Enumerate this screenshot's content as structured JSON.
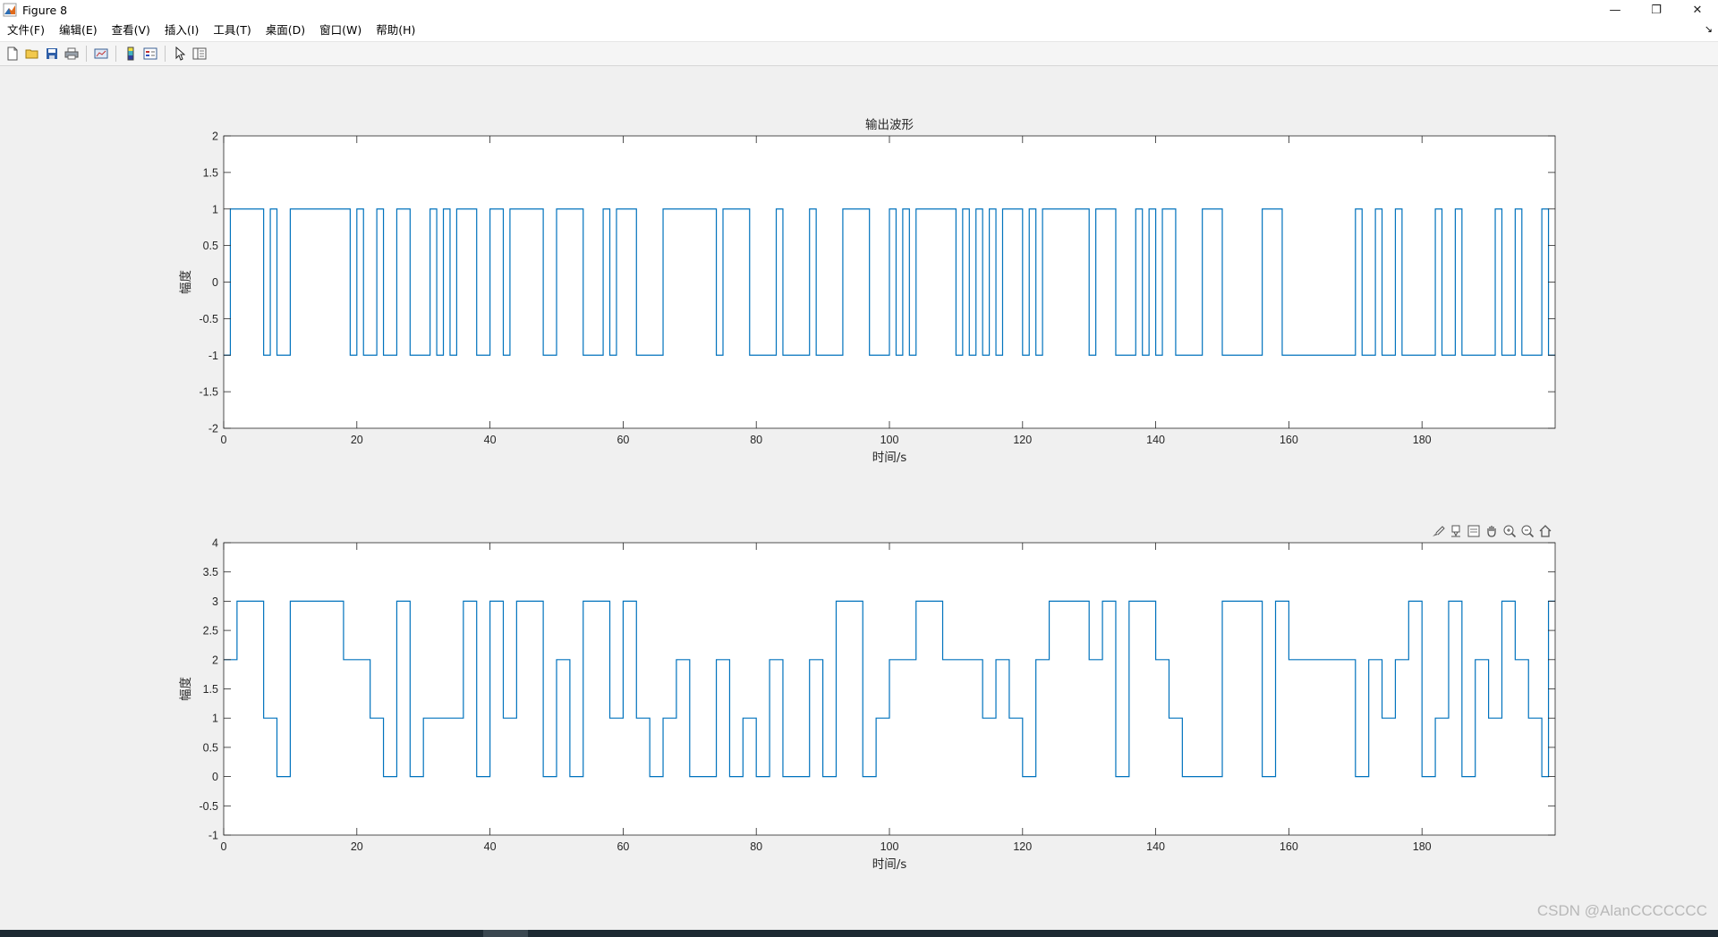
{
  "window": {
    "title": "Figure 8",
    "controls": [
      "—",
      "❐",
      "✕"
    ]
  },
  "menu": {
    "items": [
      "文件(F)",
      "编辑(E)",
      "查看(V)",
      "插入(I)",
      "工具(T)",
      "桌面(D)",
      "窗口(W)",
      "帮助(H)"
    ],
    "corner": "↘"
  },
  "toolbar": {
    "icons": [
      "new-figure-icon",
      "open-file-icon",
      "save-icon",
      "print-icon",
      "link-plot-icon",
      "colorbar-icon",
      "legend-icon",
      "pointer-icon",
      "property-inspector-icon"
    ]
  },
  "axes_toolbar": {
    "icons": [
      "brush-icon",
      "data-tips-icon",
      "export-icon",
      "pan-icon",
      "zoom-in-icon",
      "zoom-out-icon",
      "home-icon"
    ]
  },
  "watermark": "CSDN @AlanCCCCCCC",
  "chart_data": [
    {
      "type": "line",
      "style": "stairs",
      "title": "输出波形",
      "xlabel": "时间/s",
      "ylabel": "幅度",
      "xlim": [
        0,
        200
      ],
      "ylim": [
        -2,
        2
      ],
      "grid": false,
      "color": "#0072BD",
      "xticks": [
        "0",
        "20",
        "40",
        "60",
        "80",
        "100",
        "120",
        "140",
        "160",
        "180"
      ],
      "yticks": [
        "-2",
        "-1.5",
        "-1",
        "-0.5",
        "0",
        "0.5",
        "1",
        "1.5",
        "2"
      ],
      "series": [
        {
          "x": [
            0,
            1,
            2,
            6,
            7,
            8,
            10,
            19,
            20,
            21,
            22,
            23,
            24,
            26,
            28,
            31,
            32,
            33,
            34,
            35,
            38,
            40,
            42,
            43,
            48,
            50,
            54,
            57,
            58,
            59,
            62,
            66,
            74,
            75,
            79,
            83,
            84,
            88,
            89,
            93,
            97,
            100,
            101,
            102,
            103,
            104,
            110,
            111,
            112,
            113,
            114,
            115,
            116,
            117,
            120,
            121,
            122,
            123,
            130,
            131,
            134,
            137,
            138,
            139,
            140,
            141,
            143,
            147,
            150,
            156,
            159,
            170,
            171,
            173,
            174,
            176,
            177,
            182,
            183,
            185,
            186,
            191,
            192,
            194,
            195,
            198,
            199
          ],
          "y": [
            -1,
            1,
            1,
            -1,
            1,
            -1,
            1,
            -1,
            1,
            -1,
            -1,
            1,
            -1,
            1,
            -1,
            1,
            -1,
            1,
            -1,
            1,
            -1,
            1,
            -1,
            1,
            -1,
            1,
            -1,
            1,
            -1,
            1,
            -1,
            1,
            -1,
            1,
            -1,
            1,
            -1,
            1,
            -1,
            1,
            -1,
            1,
            -1,
            1,
            -1,
            1,
            -1,
            1,
            -1,
            1,
            -1,
            1,
            -1,
            1,
            -1,
            1,
            -1,
            1,
            -1,
            1,
            -1,
            1,
            -1,
            1,
            -1,
            1,
            -1,
            1,
            -1,
            1,
            -1,
            1,
            -1,
            1,
            -1,
            1,
            -1,
            1,
            -1,
            1,
            -1,
            1,
            -1,
            1,
            -1,
            1,
            -1
          ]
        }
      ]
    },
    {
      "type": "line",
      "style": "stairs",
      "title": "",
      "xlabel": "时间/s",
      "ylabel": "幅度",
      "xlim": [
        0,
        200
      ],
      "ylim": [
        -1,
        4
      ],
      "grid": false,
      "color": "#0072BD",
      "xticks": [
        "0",
        "20",
        "40",
        "60",
        "80",
        "100",
        "120",
        "140",
        "160",
        "180"
      ],
      "yticks": [
        "-1",
        "-0.5",
        "0",
        "0.5",
        "1",
        "1.5",
        "2",
        "2.5",
        "3",
        "3.5",
        "4"
      ],
      "series": [
        {
          "x": [
            0,
            2,
            6,
            8,
            10,
            18,
            22,
            24,
            26,
            28,
            30,
            36,
            38,
            40,
            42,
            44,
            48,
            50,
            52,
            54,
            58,
            60,
            62,
            64,
            66,
            68,
            70,
            74,
            76,
            78,
            80,
            82,
            84,
            88,
            90,
            92,
            96,
            98,
            100,
            104,
            108,
            114,
            116,
            118,
            120,
            122,
            124,
            130,
            132,
            134,
            136,
            140,
            142,
            144,
            150,
            156,
            158,
            160,
            170,
            172,
            174,
            176,
            178,
            180,
            182,
            184,
            186,
            188,
            190,
            192,
            194,
            196,
            198,
            199
          ],
          "y": [
            2,
            3,
            1,
            0,
            3,
            2,
            1,
            0,
            3,
            0,
            1,
            3,
            0,
            3,
            1,
            3,
            0,
            2,
            0,
            3,
            1,
            3,
            1,
            0,
            1,
            2,
            0,
            2,
            0,
            1,
            0,
            2,
            0,
            2,
            0,
            3,
            0,
            1,
            2,
            3,
            2,
            1,
            2,
            1,
            0,
            2,
            3,
            2,
            3,
            0,
            3,
            2,
            1,
            0,
            3,
            0,
            3,
            2,
            0,
            2,
            1,
            2,
            3,
            0,
            1,
            3,
            0,
            2,
            1,
            3,
            2,
            1,
            0,
            3
          ]
        }
      ]
    }
  ]
}
